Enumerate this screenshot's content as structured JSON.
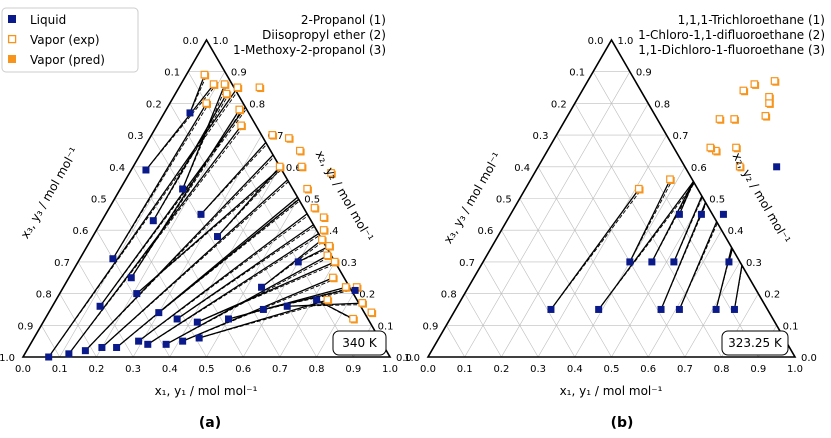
{
  "colors": {
    "liquid": "#0b1a8a",
    "vapor": "#f7941d",
    "grid": "#bdbdbd"
  },
  "legend": [
    {
      "label": "Liquid",
      "marker": "liquid"
    },
    {
      "label": "Vapor (exp)",
      "marker": "vapor_exp"
    },
    {
      "label": "Vapor (pred)",
      "marker": "vapor_pred"
    }
  ],
  "ticks": [
    "0.0",
    "0.1",
    "0.2",
    "0.3",
    "0.4",
    "0.5",
    "0.6",
    "0.7",
    "0.8",
    "0.9",
    "1.0"
  ],
  "chart_data": [
    {
      "type": "scatter",
      "panel_label": "(a)",
      "components": [
        "2-Propanol (1)",
        "Diisopropyl ether (2)",
        "1-Methoxy-2-propanol (3)"
      ],
      "temperature": "340 K",
      "xlabel": "x₁, y₁ / mol mol⁻¹",
      "left_label": "x₃, y₃ / mol mol⁻¹",
      "right_label": "x₂, y₂ / mol mol⁻¹",
      "tie_lines": [
        {
          "liquid": [
            0.07,
            0.0
          ],
          "vapor": [
            0.16,
            0.85
          ]
        },
        {
          "liquid": [
            0.12,
            0.01
          ],
          "vapor": [
            0.23,
            0.73
          ]
        },
        {
          "liquid": [
            0.16,
            0.02
          ],
          "vapor": [
            0.38,
            0.69
          ]
        },
        {
          "liquid": [
            0.2,
            0.03
          ],
          "vapor": [
            0.46,
            0.6
          ]
        },
        {
          "liquid": [
            0.24,
            0.03
          ],
          "vapor": [
            0.51,
            0.53
          ]
        },
        {
          "liquid": [
            0.29,
            0.05
          ],
          "vapor": [
            0.56,
            0.47
          ]
        },
        {
          "liquid": [
            0.32,
            0.04
          ],
          "vapor": [
            0.62,
            0.4
          ]
        },
        {
          "liquid": [
            0.37,
            0.04
          ],
          "vapor": [
            0.67,
            0.32
          ]
        },
        {
          "liquid": [
            0.41,
            0.05
          ],
          "vapor": [
            0.72,
            0.25
          ]
        },
        {
          "liquid": [
            0.45,
            0.06
          ],
          "vapor": [
            0.74,
            0.18
          ]
        },
        {
          "liquid": [
            0.13,
            0.16
          ],
          "vapor": [
            0.22,
            0.85
          ]
        },
        {
          "liquid": [
            0.17,
            0.25
          ],
          "vapor": [
            0.2,
            0.78
          ]
        },
        {
          "liquid": [
            0.21,
            0.2
          ],
          "vapor": [
            0.43,
            0.65
          ]
        },
        {
          "liquid": [
            0.3,
            0.14
          ],
          "vapor": [
            0.55,
            0.58
          ]
        },
        {
          "liquid": [
            0.36,
            0.12
          ],
          "vapor": [
            0.6,
            0.44
          ]
        },
        {
          "liquid": [
            0.42,
            0.11
          ],
          "vapor": [
            0.7,
            0.3
          ]
        },
        {
          "liquid": [
            0.5,
            0.12
          ],
          "vapor": [
            0.77,
            0.22
          ]
        },
        {
          "liquid": [
            0.58,
            0.15
          ],
          "vapor": [
            0.8,
            0.22
          ]
        },
        {
          "liquid": [
            0.64,
            0.16
          ],
          "vapor": [
            0.84,
            0.17
          ]
        },
        {
          "liquid": [
            0.71,
            0.18
          ],
          "vapor": [
            0.84,
            0.12
          ]
        },
        {
          "liquid": [
            0.8,
            0.21
          ],
          "vapor": [
            0.88,
            0.14
          ]
        },
        {
          "liquid": [
            0.09,
            0.31
          ],
          "vapor": [
            0.1,
            0.8
          ]
        },
        {
          "liquid": [
            0.14,
            0.43
          ],
          "vapor": [
            0.14,
            0.83
          ]
        },
        {
          "liquid": [
            0.17,
            0.53
          ],
          "vapor": [
            0.12,
            0.86
          ]
        },
        {
          "liquid": [
            0.26,
            0.45
          ],
          "vapor": [
            0.33,
            0.7
          ]
        },
        {
          "liquid": [
            0.34,
            0.38
          ],
          "vapor": [
            0.4,
            0.6
          ]
        },
        {
          "liquid": [
            0.54,
            0.22
          ],
          "vapor": [
            0.63,
            0.37
          ]
        },
        {
          "liquid": [
            0.6,
            0.3
          ],
          "vapor": [
            0.66,
            0.35
          ]
        },
        {
          "liquid": [
            0.04,
            0.59
          ],
          "vapor": [
            0.09,
            0.86
          ]
        },
        {
          "liquid": [
            0.07,
            0.77
          ],
          "vapor": [
            0.05,
            0.89
          ]
        }
      ]
    },
    {
      "type": "scatter",
      "panel_label": "(b)",
      "components": [
        "1,1,1-Trichloroethane (1)",
        "1-Chloro-1,1-difluoroethane (2)",
        "1,1-Dichloro-1-fluoroethane (3)"
      ],
      "temperature": "323.25 K",
      "xlabel": "x₁, y₁ / mol mol⁻¹",
      "left_label": "x₃, y₃ / mol mol⁻¹",
      "right_label": "x₂, y₂ / mol mol⁻¹",
      "tie_lines": [
        {
          "liquid": [
            0.26,
            0.15
          ],
          "vapor": [
            0.31,
            0.53
          ]
        },
        {
          "liquid": [
            0.4,
            0.3
          ],
          "vapor": [
            0.38,
            0.56
          ]
        },
        {
          "liquid": [
            0.39,
            0.15
          ],
          "vapor": [
            0.46,
            0.65
          ]
        },
        {
          "liquid": [
            0.46,
            0.3
          ],
          "vapor": [
            0.44,
            0.66
          ]
        },
        {
          "liquid": [
            0.52,
            0.3
          ],
          "vapor": [
            0.46,
            0.75
          ]
        },
        {
          "liquid": [
            0.46,
            0.45
          ],
          "vapor": [
            0.42,
            0.75
          ]
        },
        {
          "liquid": [
            0.56,
            0.15
          ],
          "vapor": [
            0.46,
            0.86
          ]
        },
        {
          "liquid": [
            0.52,
            0.45
          ],
          "vapor": [
            0.44,
            0.84
          ]
        },
        {
          "liquid": [
            0.67,
            0.3
          ],
          "vapor": [
            0.51,
            0.87
          ]
        },
        {
          "liquid": [
            0.71,
            0.15
          ],
          "vapor": [
            0.52,
            0.82
          ]
        },
        {
          "liquid": [
            0.76,
            0.15
          ],
          "vapor": [
            0.53,
            0.8
          ]
        },
        {
          "liquid": [
            0.58,
            0.45
          ],
          "vapor": [
            0.51,
            0.66
          ]
        },
        {
          "liquid": [
            0.65,
            0.6
          ],
          "vapor": [
            0.54,
            0.76
          ]
        },
        {
          "liquid": [
            0.61,
            0.15
          ],
          "vapor": [
            0.55,
            0.6
          ]
        }
      ]
    }
  ]
}
